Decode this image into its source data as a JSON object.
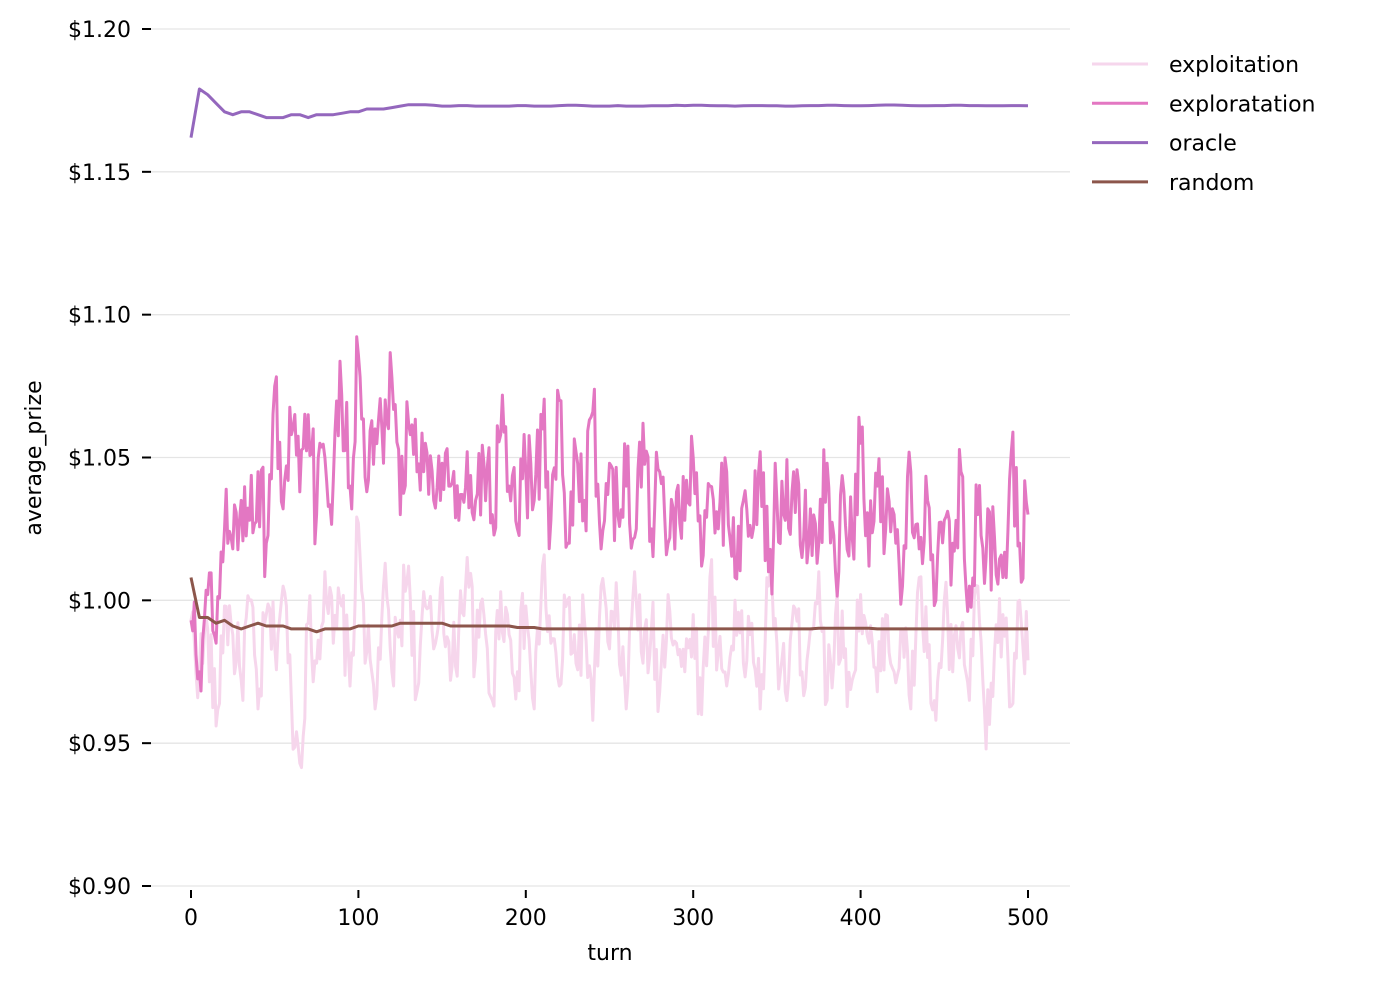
{
  "chart_data": {
    "type": "line",
    "title": "",
    "xlabel": "turn",
    "ylabel": "average_prize",
    "xlim": [
      -25,
      525
    ],
    "ylim": [
      0.9,
      1.2
    ],
    "xticks": [
      0,
      100,
      200,
      300,
      400,
      500
    ],
    "xtick_labels": [
      "0",
      "100",
      "200",
      "300",
      "400",
      "500"
    ],
    "yticks": [
      0.9,
      0.95,
      1.0,
      1.05,
      1.1,
      1.15,
      1.2
    ],
    "ytick_labels": [
      "$0.90",
      "$0.95",
      "$1.00",
      "$1.05",
      "$1.10",
      "$1.15",
      "$1.20"
    ],
    "grid": "horizontal",
    "legend_position": "upper right, outside plot",
    "x_step": 5,
    "x": [
      0,
      5,
      10,
      15,
      20,
      25,
      30,
      35,
      40,
      45,
      50,
      55,
      60,
      65,
      70,
      75,
      80,
      85,
      90,
      95,
      100,
      105,
      110,
      115,
      120,
      125,
      130,
      135,
      140,
      145,
      150,
      155,
      160,
      165,
      170,
      175,
      180,
      185,
      190,
      195,
      200,
      205,
      210,
      215,
      220,
      225,
      230,
      235,
      240,
      245,
      250,
      255,
      260,
      265,
      270,
      275,
      280,
      285,
      290,
      295,
      300,
      305,
      310,
      315,
      320,
      325,
      330,
      335,
      340,
      345,
      350,
      355,
      360,
      365,
      370,
      375,
      380,
      385,
      390,
      395,
      400,
      405,
      410,
      415,
      420,
      425,
      430,
      435,
      440,
      445,
      450,
      455,
      460,
      465,
      470,
      475,
      480,
      485,
      490,
      495,
      500
    ],
    "series": [
      {
        "name": "exploitation",
        "color": "#f6d6ec",
        "values": [
          0.993,
          0.975,
          0.99,
          0.956,
          0.998,
          0.988,
          0.972,
          1.0,
          0.962,
          0.995,
          0.984,
          1.005,
          0.965,
          0.943,
          0.992,
          0.978,
          1.01,
          0.985,
          0.998,
          0.97,
          1.027,
          0.982,
          0.962,
          1.005,
          0.975,
          0.993,
          1.012,
          0.968,
          0.998,
          0.983,
          1.008,
          0.972,
          0.99,
          1.015,
          0.98,
          0.995,
          0.965,
          1.003,
          0.988,
          0.975,
          0.998,
          0.962,
          1.012,
          0.985,
          0.97,
          1.0,
          0.978,
          0.993,
          0.958,
          1.005,
          0.983,
          0.995,
          0.962,
          1.01,
          0.978,
          0.99,
          0.968,
          1.002,
          0.985,
          0.975,
          0.995,
          0.96,
          1.008,
          0.982,
          0.97,
          1.0,
          0.978,
          0.992,
          0.962,
          1.005,
          0.985,
          0.968,
          0.998,
          0.975,
          0.99,
          1.01,
          0.965,
          0.995,
          0.98,
          0.972,
          1.002,
          0.985,
          0.968,
          0.995,
          0.975,
          0.99,
          0.962,
          1.008,
          0.98,
          0.958,
          1.0,
          0.975,
          0.99,
          0.965,
          1.005,
          0.948,
          0.982,
          0.995,
          0.963,
          1.0,
          0.979
        ]
      },
      {
        "name": "exploratation",
        "color": "#e377c2",
        "values": [
          0.993,
          0.975,
          1.002,
          0.985,
          1.025,
          1.018,
          1.035,
          1.028,
          1.045,
          1.02,
          1.075,
          1.032,
          1.058,
          1.038,
          1.065,
          1.03,
          1.05,
          1.042,
          1.072,
          1.04,
          1.086,
          1.038,
          1.06,
          1.048,
          1.078,
          1.03,
          1.062,
          1.045,
          1.055,
          1.035,
          1.048,
          1.04,
          1.028,
          1.052,
          1.035,
          1.048,
          1.03,
          1.058,
          1.04,
          1.025,
          1.045,
          1.035,
          1.06,
          1.028,
          1.07,
          1.02,
          1.052,
          1.035,
          1.066,
          1.018,
          1.048,
          1.03,
          1.04,
          1.022,
          1.062,
          1.025,
          1.045,
          1.02,
          1.038,
          1.028,
          1.05,
          1.012,
          1.04,
          1.025,
          1.045,
          1.008,
          1.035,
          1.022,
          1.052,
          1.01,
          1.035,
          1.028,
          1.045,
          1.015,
          1.032,
          1.02,
          1.048,
          1.01,
          1.038,
          1.022,
          1.055,
          1.012,
          1.04,
          1.025,
          1.03,
          1.005,
          1.045,
          1.018,
          1.035,
          1.0,
          1.028,
          1.02,
          1.045,
          1.005,
          1.03,
          1.015,
          1.022,
          1.008,
          1.052,
          1.02,
          1.03
        ]
      },
      {
        "name": "oracle",
        "color": "#9467bd",
        "values": [
          1.162,
          1.179,
          1.177,
          1.174,
          1.171,
          1.17,
          1.171,
          1.171,
          1.17,
          1.169,
          1.169,
          1.169,
          1.17,
          1.17,
          1.169,
          1.17,
          1.17,
          1.17,
          1.1705,
          1.171,
          1.171,
          1.172,
          1.172,
          1.172,
          1.1725,
          1.173,
          1.1735,
          1.1735,
          1.1735,
          1.1733,
          1.173,
          1.173,
          1.1732,
          1.1732,
          1.173,
          1.173,
          1.173,
          1.173,
          1.173,
          1.1732,
          1.1732,
          1.173,
          1.173,
          1.173,
          1.1732,
          1.1733,
          1.1733,
          1.1732,
          1.173,
          1.173,
          1.173,
          1.1732,
          1.173,
          1.173,
          1.173,
          1.1731,
          1.1731,
          1.1731,
          1.1733,
          1.1732,
          1.1733,
          1.1733,
          1.1732,
          1.1731,
          1.1731,
          1.173,
          1.1731,
          1.1732,
          1.1732,
          1.1731,
          1.1731,
          1.173,
          1.173,
          1.1731,
          1.1732,
          1.1732,
          1.1733,
          1.1733,
          1.1732,
          1.1731,
          1.1731,
          1.1732,
          1.1733,
          1.1734,
          1.1734,
          1.1733,
          1.1732,
          1.1731,
          1.1731,
          1.1732,
          1.1732,
          1.1733,
          1.1733,
          1.1732,
          1.1732,
          1.1731,
          1.1731,
          1.1731,
          1.1732,
          1.1732,
          1.1731
        ]
      },
      {
        "name": "random",
        "color": "#8c564b",
        "values": [
          1.008,
          0.994,
          0.994,
          0.992,
          0.993,
          0.991,
          0.99,
          0.991,
          0.992,
          0.991,
          0.991,
          0.991,
          0.99,
          0.99,
          0.99,
          0.989,
          0.99,
          0.99,
          0.99,
          0.99,
          0.991,
          0.991,
          0.991,
          0.991,
          0.991,
          0.992,
          0.992,
          0.992,
          0.992,
          0.992,
          0.992,
          0.991,
          0.991,
          0.991,
          0.991,
          0.991,
          0.991,
          0.991,
          0.991,
          0.9905,
          0.9905,
          0.9905,
          0.99,
          0.99,
          0.99,
          0.99,
          0.99,
          0.99,
          0.99,
          0.99,
          0.99,
          0.99,
          0.99,
          0.99,
          0.99,
          0.99,
          0.99,
          0.99,
          0.99,
          0.99,
          0.99,
          0.99,
          0.99,
          0.99,
          0.99,
          0.99,
          0.99,
          0.99,
          0.99,
          0.99,
          0.99,
          0.99,
          0.99,
          0.99,
          0.99,
          0.9902,
          0.9902,
          0.9902,
          0.9902,
          0.9902,
          0.9902,
          0.9902,
          0.99,
          0.99,
          0.99,
          0.99,
          0.99,
          0.99,
          0.99,
          0.99,
          0.99,
          0.99,
          0.99,
          0.99,
          0.99,
          0.99,
          0.99,
          0.99,
          0.99,
          0.99,
          0.99
        ]
      }
    ]
  },
  "legend": {
    "items": [
      {
        "label": "exploitation",
        "color": "#f6d6ec"
      },
      {
        "label": "exploratation",
        "color": "#e377c2"
      },
      {
        "label": "oracle",
        "color": "#9467bd"
      },
      {
        "label": "random",
        "color": "#8c564b"
      }
    ]
  },
  "style": {
    "grid_color": "#e5e5e5",
    "background": "#ffffff"
  }
}
